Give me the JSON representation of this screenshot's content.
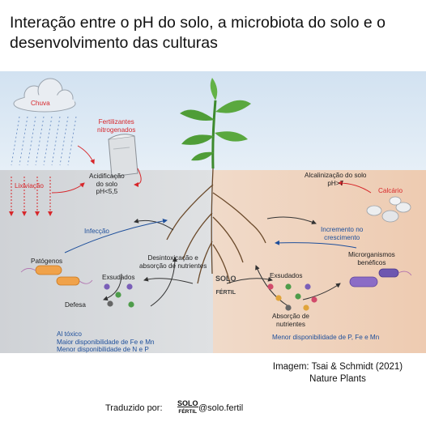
{
  "title": "Interação entre o pH do solo, a microbiota do solo e o desenvolvimento das culturas",
  "labels": {
    "chuva": "Chuva",
    "fertilizantes": "Fertilizantes\nnitrogenados",
    "lixiviacao": "Lixiviação",
    "acidificacao": "Acidificação\ndo solo\npH<5,5",
    "alcalinizacao": "Alcalinização do solo\npH>7",
    "calcario": "Calcário",
    "infeccao": "Infecção",
    "incremento": "Incremento no\ncrescimento",
    "patogenos": "Patógenos",
    "desintoxicacao": "Desintoxicação e\nabsorção de nutrientes",
    "exsudados_left": "Exsudados",
    "exsudados_right": "Exsudados",
    "microrganismos": "Microrganismos\nbenéficos",
    "defesa": "Defesa",
    "absorcao": "Absorção de\nnutrientes",
    "left_note": "Al tóxico\nMaior disponibilidade de Fe e Mn\nMenor disponibilidade de N e P",
    "right_note": "Menor disponibilidade de P, Fe e Mn"
  },
  "credit": "Imagem: Tsai & Schmidt (2021)\nNature Plants",
  "footer": {
    "translated_by": "Traduzido por:",
    "handle": "@solo.fertil"
  },
  "logo_text": {
    "top": "SOLO",
    "bottom": "FÉRTIL"
  },
  "colors": {
    "sky": "#dbe8f4",
    "soil_acid": "#d4d7db",
    "soil_alkaline": "#f1d6c1",
    "red": "#d7262a",
    "blue": "#1e4f9b"
  }
}
